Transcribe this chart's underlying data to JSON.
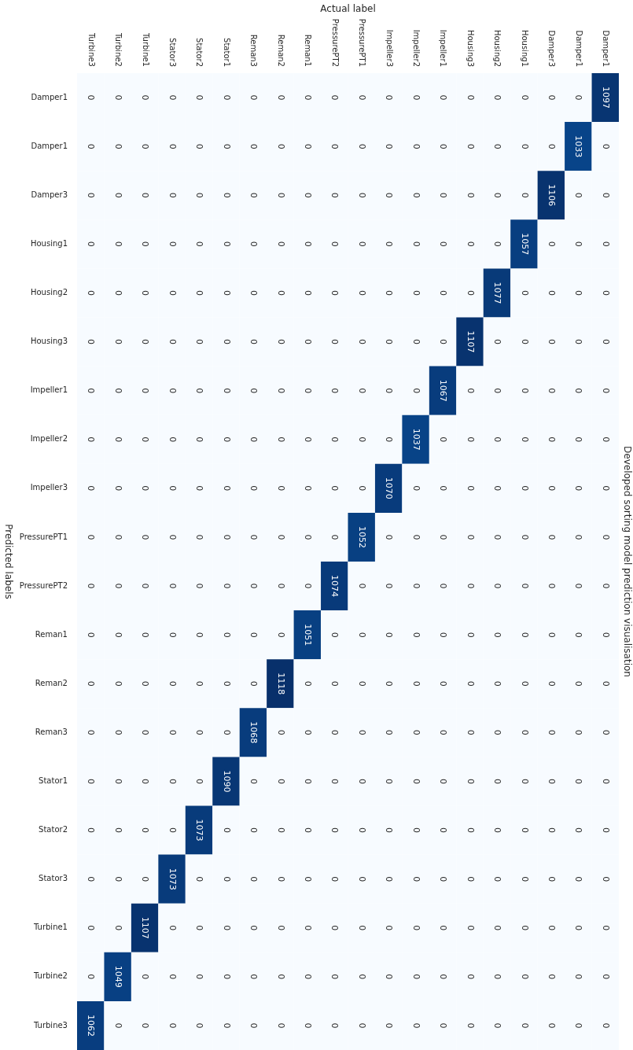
{
  "chart_data": {
    "type": "heatmap",
    "title": "Developed sorting model prediction visualisation",
    "xlabel": "Actual label",
    "ylabel": "Predicted labels",
    "data_labels": true,
    "categories": [
      "Turbine3",
      "Turbine2",
      "Turbine1",
      "Stator3",
      "Stator2",
      "Stator1",
      "Reman3",
      "Reman2",
      "Reman1",
      "PressurePT2",
      "PressurePT1",
      "Impeller3",
      "Impeller2",
      "Impeller1",
      "Housing3",
      "Housing2",
      "Housing1",
      "Damper3",
      "Damper1",
      "Damper1"
    ],
    "y_categories": [
      "Damper1",
      "Damper1",
      "Damper3",
      "Housing1",
      "Housing2",
      "Housing3",
      "Impeller1",
      "Impeller2",
      "Impeller3",
      "PressurePT1",
      "PressurePT2",
      "Reman1",
      "Reman2",
      "Reman3",
      "Stator1",
      "Stator2",
      "Stator3",
      "Turbine1",
      "Turbine2",
      "Turbine3"
    ],
    "cells": [
      [
        0,
        0,
        0,
        0,
        0,
        0,
        0,
        0,
        0,
        0,
        0,
        0,
        0,
        0,
        0,
        0,
        0,
        0,
        0,
        1097
      ],
      [
        0,
        0,
        0,
        0,
        0,
        0,
        0,
        0,
        0,
        0,
        0,
        0,
        0,
        0,
        0,
        0,
        0,
        0,
        1033,
        0
      ],
      [
        0,
        0,
        0,
        0,
        0,
        0,
        0,
        0,
        0,
        0,
        0,
        0,
        0,
        0,
        0,
        0,
        0,
        1106,
        0,
        0
      ],
      [
        0,
        0,
        0,
        0,
        0,
        0,
        0,
        0,
        0,
        0,
        0,
        0,
        0,
        0,
        0,
        0,
        1057,
        0,
        0,
        0
      ],
      [
        0,
        0,
        0,
        0,
        0,
        0,
        0,
        0,
        0,
        0,
        0,
        0,
        0,
        0,
        0,
        1077,
        0,
        0,
        0,
        0
      ],
      [
        0,
        0,
        0,
        0,
        0,
        0,
        0,
        0,
        0,
        0,
        0,
        0,
        0,
        0,
        1107,
        0,
        0,
        0,
        0,
        0
      ],
      [
        0,
        0,
        0,
        0,
        0,
        0,
        0,
        0,
        0,
        0,
        0,
        0,
        0,
        1067,
        0,
        0,
        0,
        0,
        0,
        0
      ],
      [
        0,
        0,
        0,
        0,
        0,
        0,
        0,
        0,
        0,
        0,
        0,
        0,
        1037,
        0,
        0,
        0,
        0,
        0,
        0,
        0
      ],
      [
        0,
        0,
        0,
        0,
        0,
        0,
        0,
        0,
        0,
        0,
        0,
        1070,
        0,
        0,
        0,
        0,
        0,
        0,
        0,
        0
      ],
      [
        0,
        0,
        0,
        0,
        0,
        0,
        0,
        0,
        0,
        0,
        1052,
        0,
        0,
        0,
        0,
        0,
        0,
        0,
        0,
        0
      ],
      [
        0,
        0,
        0,
        0,
        0,
        0,
        0,
        0,
        0,
        1074,
        0,
        0,
        0,
        0,
        0,
        0,
        0,
        0,
        0,
        0
      ],
      [
        0,
        0,
        0,
        0,
        0,
        0,
        0,
        0,
        1051,
        0,
        0,
        0,
        0,
        0,
        0,
        0,
        0,
        0,
        0,
        0
      ],
      [
        0,
        0,
        0,
        0,
        0,
        0,
        0,
        1118,
        0,
        0,
        0,
        0,
        0,
        0,
        0,
        0,
        0,
        0,
        0,
        0
      ],
      [
        0,
        0,
        0,
        0,
        0,
        0,
        1068,
        0,
        0,
        0,
        0,
        0,
        0,
        0,
        0,
        0,
        0,
        0,
        0,
        0
      ],
      [
        0,
        0,
        0,
        0,
        0,
        1090,
        0,
        0,
        0,
        0,
        0,
        0,
        0,
        0,
        0,
        0,
        0,
        0,
        0,
        0
      ],
      [
        0,
        0,
        0,
        0,
        1073,
        0,
        0,
        0,
        0,
        0,
        0,
        0,
        0,
        0,
        0,
        0,
        0,
        0,
        0,
        0
      ],
      [
        0,
        0,
        0,
        1073,
        0,
        0,
        0,
        0,
        0,
        0,
        0,
        0,
        0,
        0,
        0,
        0,
        0,
        0,
        0,
        0
      ],
      [
        0,
        0,
        1107,
        0,
        0,
        0,
        0,
        0,
        0,
        0,
        0,
        0,
        0,
        0,
        0,
        0,
        0,
        0,
        0,
        0
      ],
      [
        0,
        1049,
        0,
        0,
        0,
        0,
        0,
        0,
        0,
        0,
        0,
        0,
        0,
        0,
        0,
        0,
        0,
        0,
        0,
        0
      ],
      [
        1062,
        0,
        0,
        0,
        0,
        0,
        0,
        0,
        0,
        0,
        0,
        0,
        0,
        0,
        0,
        0,
        0,
        0,
        0,
        0
      ]
    ]
  }
}
